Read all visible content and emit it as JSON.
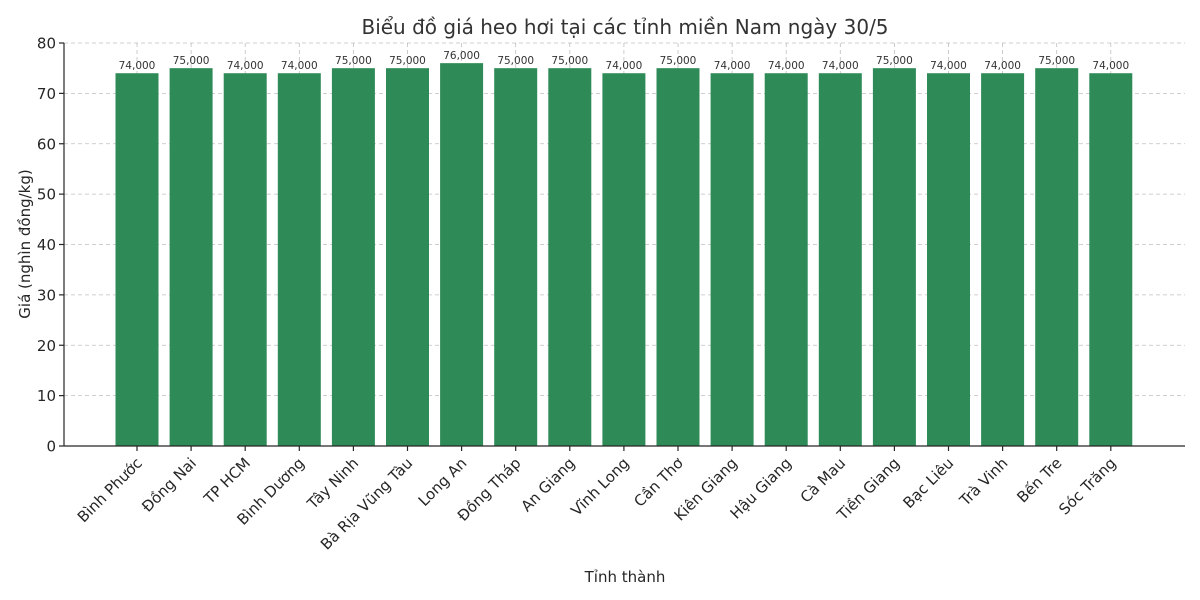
{
  "chart_data": {
    "type": "bar",
    "title": "Biểu đồ giá heo hơi tại các tỉnh miền Nam ngày 30/5",
    "xlabel": "Tỉnh thành",
    "ylabel": "Giá (nghìn đồng/kg)",
    "ylim": [
      0,
      80
    ],
    "yticks": [
      0,
      10,
      20,
      30,
      40,
      50,
      60,
      70,
      80
    ],
    "grid": true,
    "legend": null,
    "bar_color": "#2e8b57",
    "categories": [
      "Bình Phước",
      "Đồng Nai",
      "TP HCM",
      "Bình Dương",
      "Tây Ninh",
      "Bà Rịa  Vũng Tàu",
      "Long An",
      "Đồng Tháp",
      "An Giang",
      "Vĩnh Long",
      "Cần Thơ",
      "Kiên Giang",
      "Hậu Giang",
      "Cà Mau",
      "Tiền Giang",
      "Bạc Liêu",
      "Trà Vinh",
      "Bến Tre",
      "Sóc Trăng"
    ],
    "values": [
      74,
      75,
      74,
      74,
      75,
      75,
      76,
      75,
      75,
      74,
      75,
      74,
      74,
      74,
      75,
      74,
      74,
      75,
      74
    ],
    "value_labels": [
      "74,000",
      "75,000",
      "74,000",
      "74,000",
      "75,000",
      "75,000",
      "76,000",
      "75,000",
      "75,000",
      "74,000",
      "75,000",
      "74,000",
      "74,000",
      "74,000",
      "75,000",
      "74,000",
      "74,000",
      "75,000",
      "74,000"
    ]
  }
}
